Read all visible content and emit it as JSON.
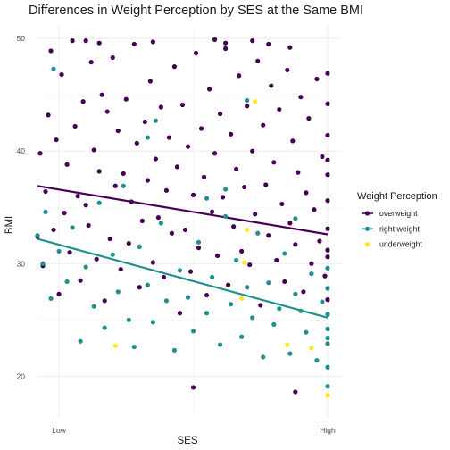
{
  "chart_data": {
    "type": "scatter",
    "title": "Differences in Weight Perception by SES at the Same BMI",
    "xlabel": "SES",
    "ylabel": "BMI",
    "xlim": [
      -0.08,
      1.05
    ],
    "ylim": [
      16.3,
      51.2
    ],
    "x_ticks": [
      {
        "value": 0,
        "label": "Low"
      },
      {
        "value": 1,
        "label": "High"
      }
    ],
    "y_ticks": [
      20,
      30,
      40,
      50
    ],
    "grid": true,
    "legend": {
      "title": "Weight Perception",
      "position": "right"
    },
    "series": [
      {
        "name": "overweight",
        "color": "#440154",
        "trend": {
          "x": [
            -0.08,
            1.0
          ],
          "y": [
            36.9,
            32.6
          ]
        },
        "points": [
          [
            -0.08,
            32.4
          ],
          [
            -0.07,
            39.8
          ],
          [
            -0.06,
            29.8
          ],
          [
            -0.05,
            36.4
          ],
          [
            -0.04,
            43.2
          ],
          [
            -0.03,
            48.9
          ],
          [
            -0.02,
            33.0
          ],
          [
            -0.01,
            41.0
          ],
          [
            0.0,
            27.3
          ],
          [
            0.01,
            46.8
          ],
          [
            0.02,
            34.5
          ],
          [
            0.03,
            38.8
          ],
          [
            0.04,
            31.0
          ],
          [
            0.05,
            49.8
          ],
          [
            0.06,
            42.2
          ],
          [
            0.07,
            36.0
          ],
          [
            0.08,
            28.5
          ],
          [
            0.09,
            44.4
          ],
          [
            0.1,
            35.2
          ],
          [
            0.11,
            33.4
          ],
          [
            0.12,
            47.9
          ],
          [
            0.13,
            40.1
          ],
          [
            0.14,
            30.4
          ],
          [
            0.15,
            38.2
          ],
          [
            0.16,
            45.0
          ],
          [
            0.17,
            26.7
          ],
          [
            0.18,
            43.5
          ],
          [
            0.19,
            32.2
          ],
          [
            0.2,
            48.3
          ],
          [
            0.21,
            36.9
          ],
          [
            0.22,
            41.8
          ],
          [
            0.23,
            29.5
          ],
          [
            0.24,
            38.0
          ],
          [
            0.25,
            44.6
          ],
          [
            0.26,
            31.8
          ],
          [
            0.27,
            35.5
          ],
          [
            0.28,
            49.5
          ],
          [
            0.29,
            40.7
          ],
          [
            0.3,
            27.9
          ],
          [
            0.31,
            33.8
          ],
          [
            0.32,
            42.6
          ],
          [
            0.33,
            37.4
          ],
          [
            0.34,
            46.2
          ],
          [
            0.35,
            30.1
          ],
          [
            0.36,
            39.3
          ],
          [
            0.37,
            34.1
          ],
          [
            0.38,
            43.9
          ],
          [
            0.39,
            28.8
          ],
          [
            0.4,
            36.5
          ],
          [
            0.41,
            41.2
          ],
          [
            0.42,
            32.7
          ],
          [
            0.43,
            47.5
          ],
          [
            0.44,
            38.6
          ],
          [
            0.45,
            25.6
          ],
          [
            0.46,
            44.1
          ],
          [
            0.47,
            33.0
          ],
          [
            0.48,
            40.4
          ],
          [
            0.49,
            29.3
          ],
          [
            0.5,
            36.1
          ],
          [
            0.51,
            48.7
          ],
          [
            0.52,
            31.4
          ],
          [
            0.53,
            42.0
          ],
          [
            0.54,
            37.7
          ],
          [
            0.55,
            27.2
          ],
          [
            0.56,
            45.5
          ],
          [
            0.57,
            34.6
          ],
          [
            0.58,
            39.8
          ],
          [
            0.59,
            30.7
          ],
          [
            0.6,
            43.3
          ],
          [
            0.61,
            35.9
          ],
          [
            0.62,
            49.1
          ],
          [
            0.63,
            28.1
          ],
          [
            0.64,
            41.5
          ],
          [
            0.65,
            33.3
          ],
          [
            0.66,
            38.4
          ],
          [
            0.67,
            46.7
          ],
          [
            0.68,
            31.1
          ],
          [
            0.69,
            36.8
          ],
          [
            0.7,
            44.0
          ],
          [
            0.71,
            29.9
          ],
          [
            0.72,
            40.0
          ],
          [
            0.73,
            34.4
          ],
          [
            0.74,
            48.0
          ],
          [
            0.75,
            26.3
          ],
          [
            0.76,
            42.3
          ],
          [
            0.77,
            37.0
          ],
          [
            0.78,
            32.5
          ],
          [
            0.79,
            45.8
          ],
          [
            0.8,
            39.0
          ],
          [
            0.81,
            30.3
          ],
          [
            0.82,
            43.7
          ],
          [
            0.83,
            35.3
          ],
          [
            0.84,
            28.4
          ],
          [
            0.85,
            47.2
          ],
          [
            0.86,
            33.6
          ],
          [
            0.87,
            40.9
          ],
          [
            0.88,
            31.7
          ],
          [
            0.89,
            38.1
          ],
          [
            0.9,
            44.8
          ],
          [
            0.91,
            27.5
          ],
          [
            0.92,
            36.3
          ],
          [
            0.93,
            42.9
          ],
          [
            0.94,
            30.0
          ],
          [
            0.95,
            34.8
          ],
          [
            0.96,
            46.4
          ],
          [
            0.97,
            32.0
          ],
          [
            0.98,
            39.5
          ],
          [
            0.99,
            28.9
          ],
          [
            1.0,
            41.4
          ],
          [
            1.0,
            35.6
          ],
          [
            1.0,
            31.2
          ],
          [
            1.0,
            44.2
          ],
          [
            1.0,
            26.8
          ],
          [
            1.0,
            37.9
          ],
          [
            1.0,
            33.1
          ],
          [
            1.0,
            30.6
          ],
          [
            1.0,
            46.9
          ],
          [
            1.0,
            39.2
          ],
          [
            0.5,
            19.0
          ],
          [
            0.88,
            18.6
          ],
          [
            0.58,
            49.9
          ],
          [
            0.62,
            49.6
          ],
          [
            0.35,
            49.7
          ],
          [
            0.1,
            49.8
          ],
          [
            0.15,
            49.6
          ],
          [
            0.72,
            49.8
          ],
          [
            0.78,
            49.5
          ],
          [
            0.86,
            49.2
          ]
        ]
      },
      {
        "name": "right weight",
        "color": "#21908C",
        "trend": {
          "x": [
            -0.08,
            1.0
          ],
          "y": [
            32.2,
            25.2
          ]
        },
        "points": [
          [
            -0.08,
            32.5
          ],
          [
            -0.06,
            30.0
          ],
          [
            -0.05,
            34.6
          ],
          [
            -0.03,
            26.9
          ],
          [
            -0.02,
            47.3
          ],
          [
            0.0,
            31.1
          ],
          [
            0.03,
            28.4
          ],
          [
            0.05,
            33.2
          ],
          [
            0.08,
            23.1
          ],
          [
            0.1,
            29.7
          ],
          [
            0.13,
            26.2
          ],
          [
            0.15,
            35.4
          ],
          [
            0.17,
            24.3
          ],
          [
            0.2,
            30.8
          ],
          [
            0.22,
            27.5
          ],
          [
            0.24,
            36.9
          ],
          [
            0.26,
            25.0
          ],
          [
            0.28,
            22.6
          ],
          [
            0.3,
            31.5
          ],
          [
            0.33,
            28.1
          ],
          [
            0.35,
            24.8
          ],
          [
            0.38,
            33.6
          ],
          [
            0.4,
            26.7
          ],
          [
            0.43,
            22.3
          ],
          [
            0.45,
            29.4
          ],
          [
            0.48,
            27.0
          ],
          [
            0.5,
            24.0
          ],
          [
            0.52,
            31.9
          ],
          [
            0.55,
            25.6
          ],
          [
            0.57,
            28.8
          ],
          [
            0.6,
            22.8
          ],
          [
            0.62,
            34.2
          ],
          [
            0.64,
            26.4
          ],
          [
            0.66,
            30.3
          ],
          [
            0.68,
            23.5
          ],
          [
            0.7,
            27.9
          ],
          [
            0.72,
            25.2
          ],
          [
            0.74,
            32.7
          ],
          [
            0.76,
            21.7
          ],
          [
            0.78,
            28.3
          ],
          [
            0.8,
            24.6
          ],
          [
            0.82,
            26.0
          ],
          [
            0.84,
            30.9
          ],
          [
            0.86,
            22.0
          ],
          [
            0.88,
            27.3
          ],
          [
            0.9,
            25.8
          ],
          [
            0.92,
            23.9
          ],
          [
            0.94,
            29.1
          ],
          [
            0.96,
            21.4
          ],
          [
            0.98,
            26.6
          ],
          [
            1.0,
            24.2
          ],
          [
            1.0,
            27.8
          ],
          [
            1.0,
            22.9
          ],
          [
            1.0,
            25.5
          ],
          [
            1.0,
            20.8
          ],
          [
            1.0,
            29.6
          ],
          [
            1.0,
            23.4
          ],
          [
            1.0,
            19.1
          ],
          [
            0.55,
            35.8
          ],
          [
            0.7,
            44.5
          ],
          [
            0.33,
            41.2
          ],
          [
            0.36,
            42.7
          ],
          [
            0.88,
            34.0
          ],
          [
            0.62,
            36.6
          ]
        ]
      },
      {
        "name": "underweight",
        "color": "#FDE725",
        "points": [
          [
            0.21,
            22.7
          ],
          [
            0.68,
            26.9
          ],
          [
            0.69,
            30.1
          ],
          [
            0.73,
            44.4
          ],
          [
            0.85,
            22.8
          ],
          [
            0.94,
            22.5
          ],
          [
            1.0,
            18.3
          ],
          [
            0.7,
            33.0
          ]
        ]
      }
    ]
  }
}
